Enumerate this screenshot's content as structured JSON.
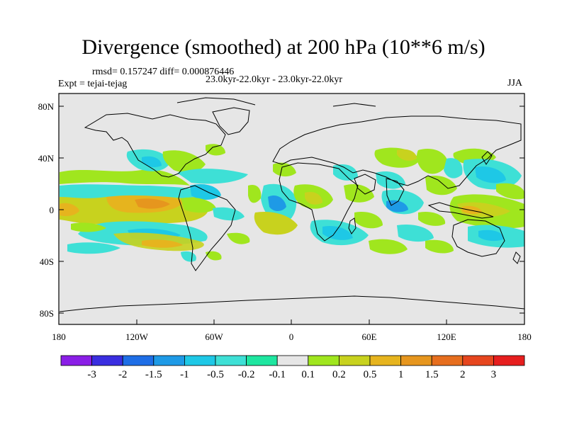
{
  "title": "Divergence (smoothed) at 200 hPa (10**6 m/s)",
  "stats_line": "rmsd= 0.157247 diff= 0.000876446",
  "experiment": "Expt = tejai-tejag",
  "period": "23.0kyr-22.0kyr - 23.0kyr-22.0kyr",
  "season": "JJA",
  "lat_ticks": [
    "80N",
    "40N",
    "0",
    "40S",
    "80S"
  ],
  "lon_ticks": [
    "180",
    "120W",
    "60W",
    "0",
    "60E",
    "120E",
    "180"
  ],
  "colorbar": {
    "labels": [
      "-3",
      "-2",
      "-1.5",
      "-1",
      "-0.5",
      "-0.2",
      "-0.1",
      "0.1",
      "0.2",
      "0.5",
      "1",
      "1.5",
      "2",
      "3"
    ],
    "colors": [
      "#8a1ee6",
      "#3a2ee0",
      "#1e6ee6",
      "#1e9ae6",
      "#1ec8e6",
      "#3ee0d6",
      "#1ee6a0",
      "#e6e6e6",
      "#a0e61e",
      "#c8d21e",
      "#e6b41e",
      "#e6961e",
      "#e66e1e",
      "#e6461e",
      "#e61e1e"
    ]
  },
  "colors": {
    "ocean_fill": "#e6e6e6",
    "coast": "#000000"
  }
}
